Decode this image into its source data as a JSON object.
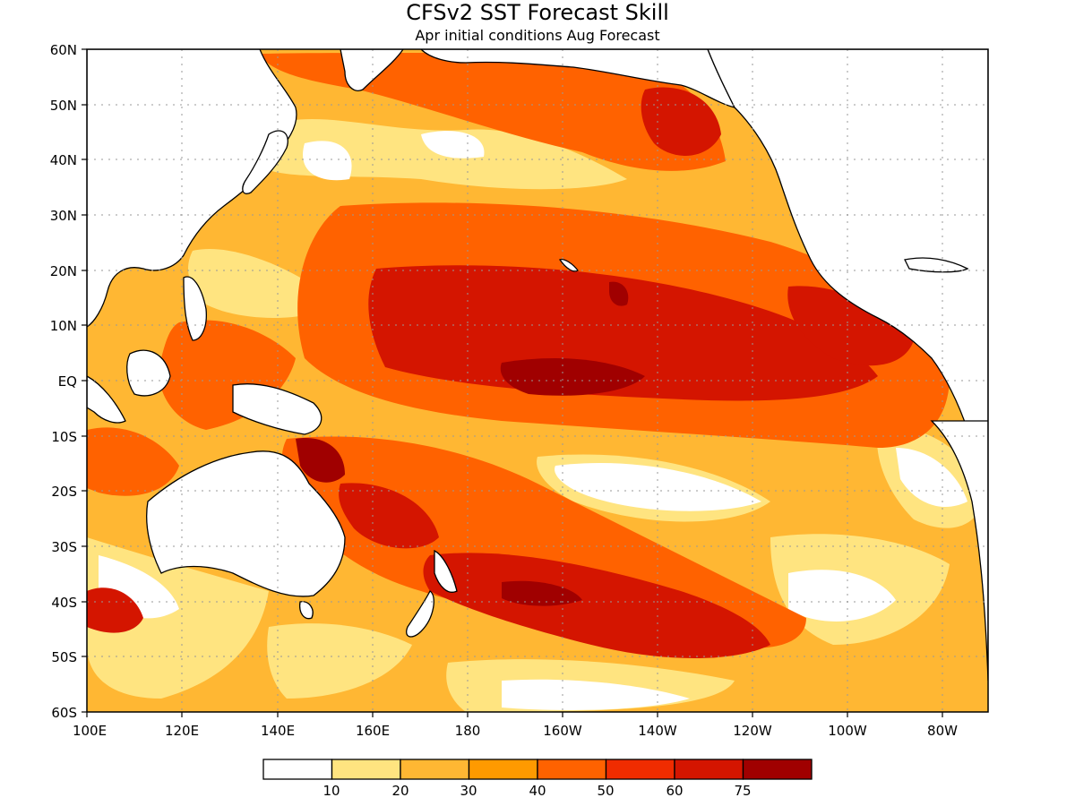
{
  "title": "CFSv2  SST Forecast Skill",
  "subtitle": "Apr initial conditions   Aug Forecast",
  "axes": {
    "lat_labels": [
      "60N",
      "50N",
      "40N",
      "30N",
      "20N",
      "10N",
      "EQ",
      "10S",
      "20S",
      "30S",
      "40S",
      "50S",
      "60S"
    ],
    "lon_labels": [
      "100E",
      "120E",
      "140E",
      "160E",
      "180",
      "160W",
      "140W",
      "120W",
      "100W",
      "80W"
    ]
  },
  "legend": {
    "colors": [
      "#ffffff",
      "#ffe480",
      "#ffb733",
      "#ff9a00",
      "#ff6200",
      "#f02c00",
      "#d41500",
      "#a00000"
    ],
    "labels": [
      "10",
      "20",
      "30",
      "40",
      "50",
      "60",
      "75"
    ]
  },
  "palette": {
    "land": "#ffffff",
    "coast": "#000000"
  }
}
